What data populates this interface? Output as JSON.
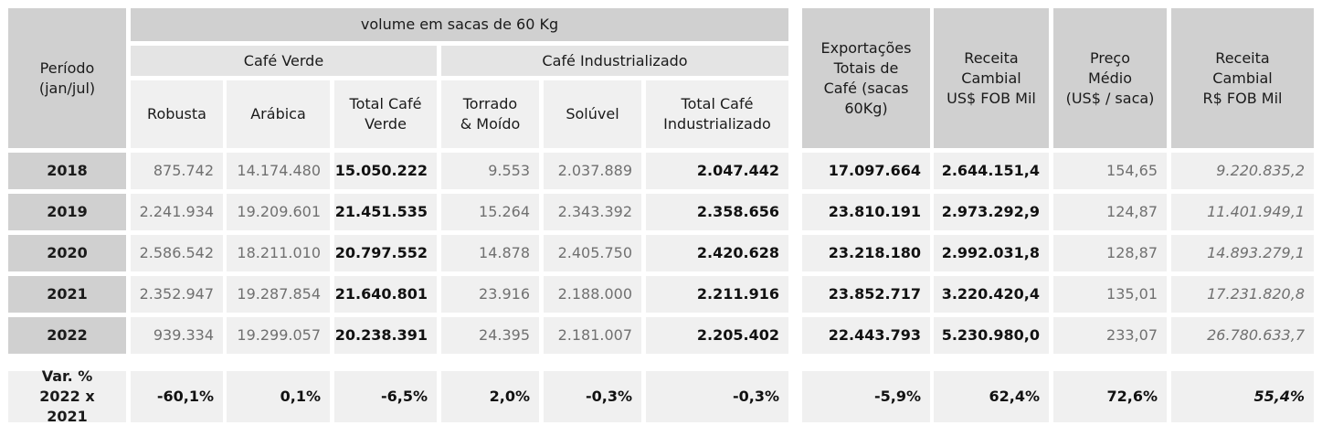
{
  "header": {
    "periodo": [
      "Período",
      "(jan/jul)"
    ],
    "volume": "volume em sacas de 60 Kg",
    "cafe_verde": "Café Verde",
    "cafe_industrializado": "Café Industrializado",
    "robusta": "Robusta",
    "arabica": "Arábica",
    "total_verde": [
      "Total Café",
      "Verde"
    ],
    "torrado": [
      "Torrado",
      "& Moído"
    ],
    "soluvel": "Solúvel",
    "total_ind": [
      "Total Café",
      "Industrializado"
    ],
    "exportacoes": [
      "Exportações",
      "Totais de",
      "Café (sacas",
      "60Kg)"
    ],
    "receita_usd": [
      "Receita",
      "Cambial",
      "US$ FOB Mil"
    ],
    "preco": [
      "Preço",
      "Médio",
      "(US$ / saca)"
    ],
    "receita_brl": [
      "Receita",
      "Cambial",
      "R$ FOB Mil"
    ]
  },
  "rows": [
    {
      "year": "2018",
      "robusta": "875.742",
      "arabica": "14.174.480",
      "total_verde": "15.050.222",
      "torrado": "9.553",
      "soluvel": "2.037.889",
      "total_ind": "2.047.442",
      "exportacoes": "17.097.664",
      "receita_usd": "2.644.151,4",
      "preco": "154,65",
      "receita_brl": "9.220.835,2"
    },
    {
      "year": "2019",
      "robusta": "2.241.934",
      "arabica": "19.209.601",
      "total_verde": "21.451.535",
      "torrado": "15.264",
      "soluvel": "2.343.392",
      "total_ind": "2.358.656",
      "exportacoes": "23.810.191",
      "receita_usd": "2.973.292,9",
      "preco": "124,87",
      "receita_brl": "11.401.949,1"
    },
    {
      "year": "2020",
      "robusta": "2.586.542",
      "arabica": "18.211.010",
      "total_verde": "20.797.552",
      "torrado": "14.878",
      "soluvel": "2.405.750",
      "total_ind": "2.420.628",
      "exportacoes": "23.218.180",
      "receita_usd": "2.992.031,8",
      "preco": "128,87",
      "receita_brl": "14.893.279,1"
    },
    {
      "year": "2021",
      "robusta": "2.352.947",
      "arabica": "19.287.854",
      "total_verde": "21.640.801",
      "torrado": "23.916",
      "soluvel": "2.188.000",
      "total_ind": "2.211.916",
      "exportacoes": "23.852.717",
      "receita_usd": "3.220.420,4",
      "preco": "135,01",
      "receita_brl": "17.231.820,8"
    },
    {
      "year": "2022",
      "robusta": "939.334",
      "arabica": "19.299.057",
      "total_verde": "20.238.391",
      "torrado": "24.395",
      "soluvel": "2.181.007",
      "total_ind": "2.205.402",
      "exportacoes": "22.443.793",
      "receita_usd": "5.230.980,0",
      "preco": "233,07",
      "receita_brl": "26.780.633,7"
    }
  ],
  "variation": {
    "label": [
      "Var. %",
      "2022 x 2021"
    ],
    "robusta": "-60,1%",
    "arabica": "0,1%",
    "total_verde": "-6,5%",
    "torrado": "2,0%",
    "soluvel": "-0,3%",
    "total_ind": "-0,3%",
    "exportacoes": "-5,9%",
    "receita_usd": "62,4%",
    "preco": "72,6%",
    "receita_brl": "55,4%"
  }
}
